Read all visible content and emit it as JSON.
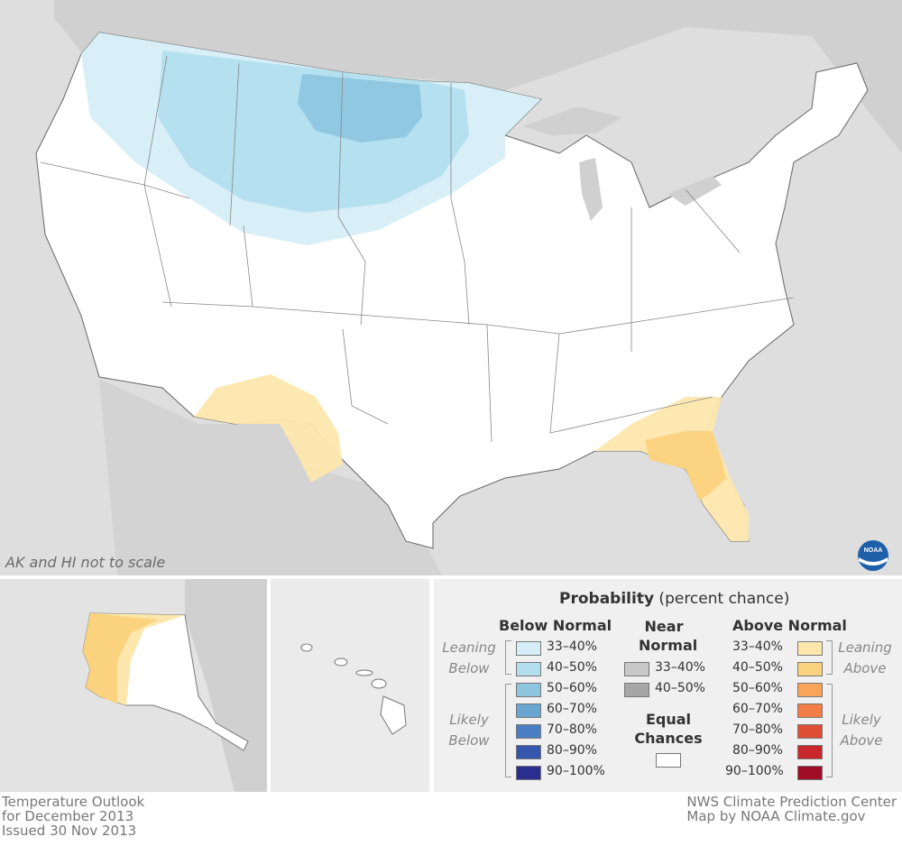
{
  "map_note": "AK and HI not to scale",
  "legend": {
    "title_bold": "Probability",
    "title_rest": " (percent chance)",
    "below": {
      "heading": "Below Normal",
      "leaning_label_1": "Leaning",
      "leaning_label_2": "Below",
      "likely_label_1": "Likely",
      "likely_label_2": "Below",
      "items": [
        {
          "label": "33–40%",
          "color": "#d6eef8"
        },
        {
          "label": "40–50%",
          "color": "#b2deee"
        },
        {
          "label": "50–60%",
          "color": "#8ec6e0"
        },
        {
          "label": "60–70%",
          "color": "#6aa6d2"
        },
        {
          "label": "70–80%",
          "color": "#4a7fc3"
        },
        {
          "label": "80–90%",
          "color": "#3456ad"
        },
        {
          "label": "90–100%",
          "color": "#2a2f8f"
        }
      ]
    },
    "near": {
      "heading_1": "Near",
      "heading_2": "Normal",
      "items": [
        {
          "label": "33–40%",
          "color": "#c8c8c8"
        },
        {
          "label": "40–50%",
          "color": "#a6a6a6"
        }
      ]
    },
    "equal": {
      "heading_1": "Equal",
      "heading_2": "Chances",
      "color": "#ffffff"
    },
    "above": {
      "heading": "Above Normal",
      "leaning_label_1": "Leaning",
      "leaning_label_2": "Above",
      "likely_label_1": "Likely",
      "likely_label_2": "Above",
      "items": [
        {
          "label": "33–40%",
          "color": "#fde7ad"
        },
        {
          "label": "40–50%",
          "color": "#fbd27e"
        },
        {
          "label": "50–60%",
          "color": "#f8a55a"
        },
        {
          "label": "60–70%",
          "color": "#f27e45"
        },
        {
          "label": "70–80%",
          "color": "#e04f35"
        },
        {
          "label": "80–90%",
          "color": "#c9272b"
        },
        {
          "label": "90–100%",
          "color": "#a00d23"
        }
      ]
    }
  },
  "footer": {
    "left_line_1": "Temperature Outlook",
    "left_line_2": "for December 2013",
    "left_line_3": "Issued 30 Nov 2013",
    "right_line_1": "NWS Climate Prediction Center",
    "right_line_2": "Map by NOAA Climate.gov"
  },
  "logo_text": "NOAA"
}
